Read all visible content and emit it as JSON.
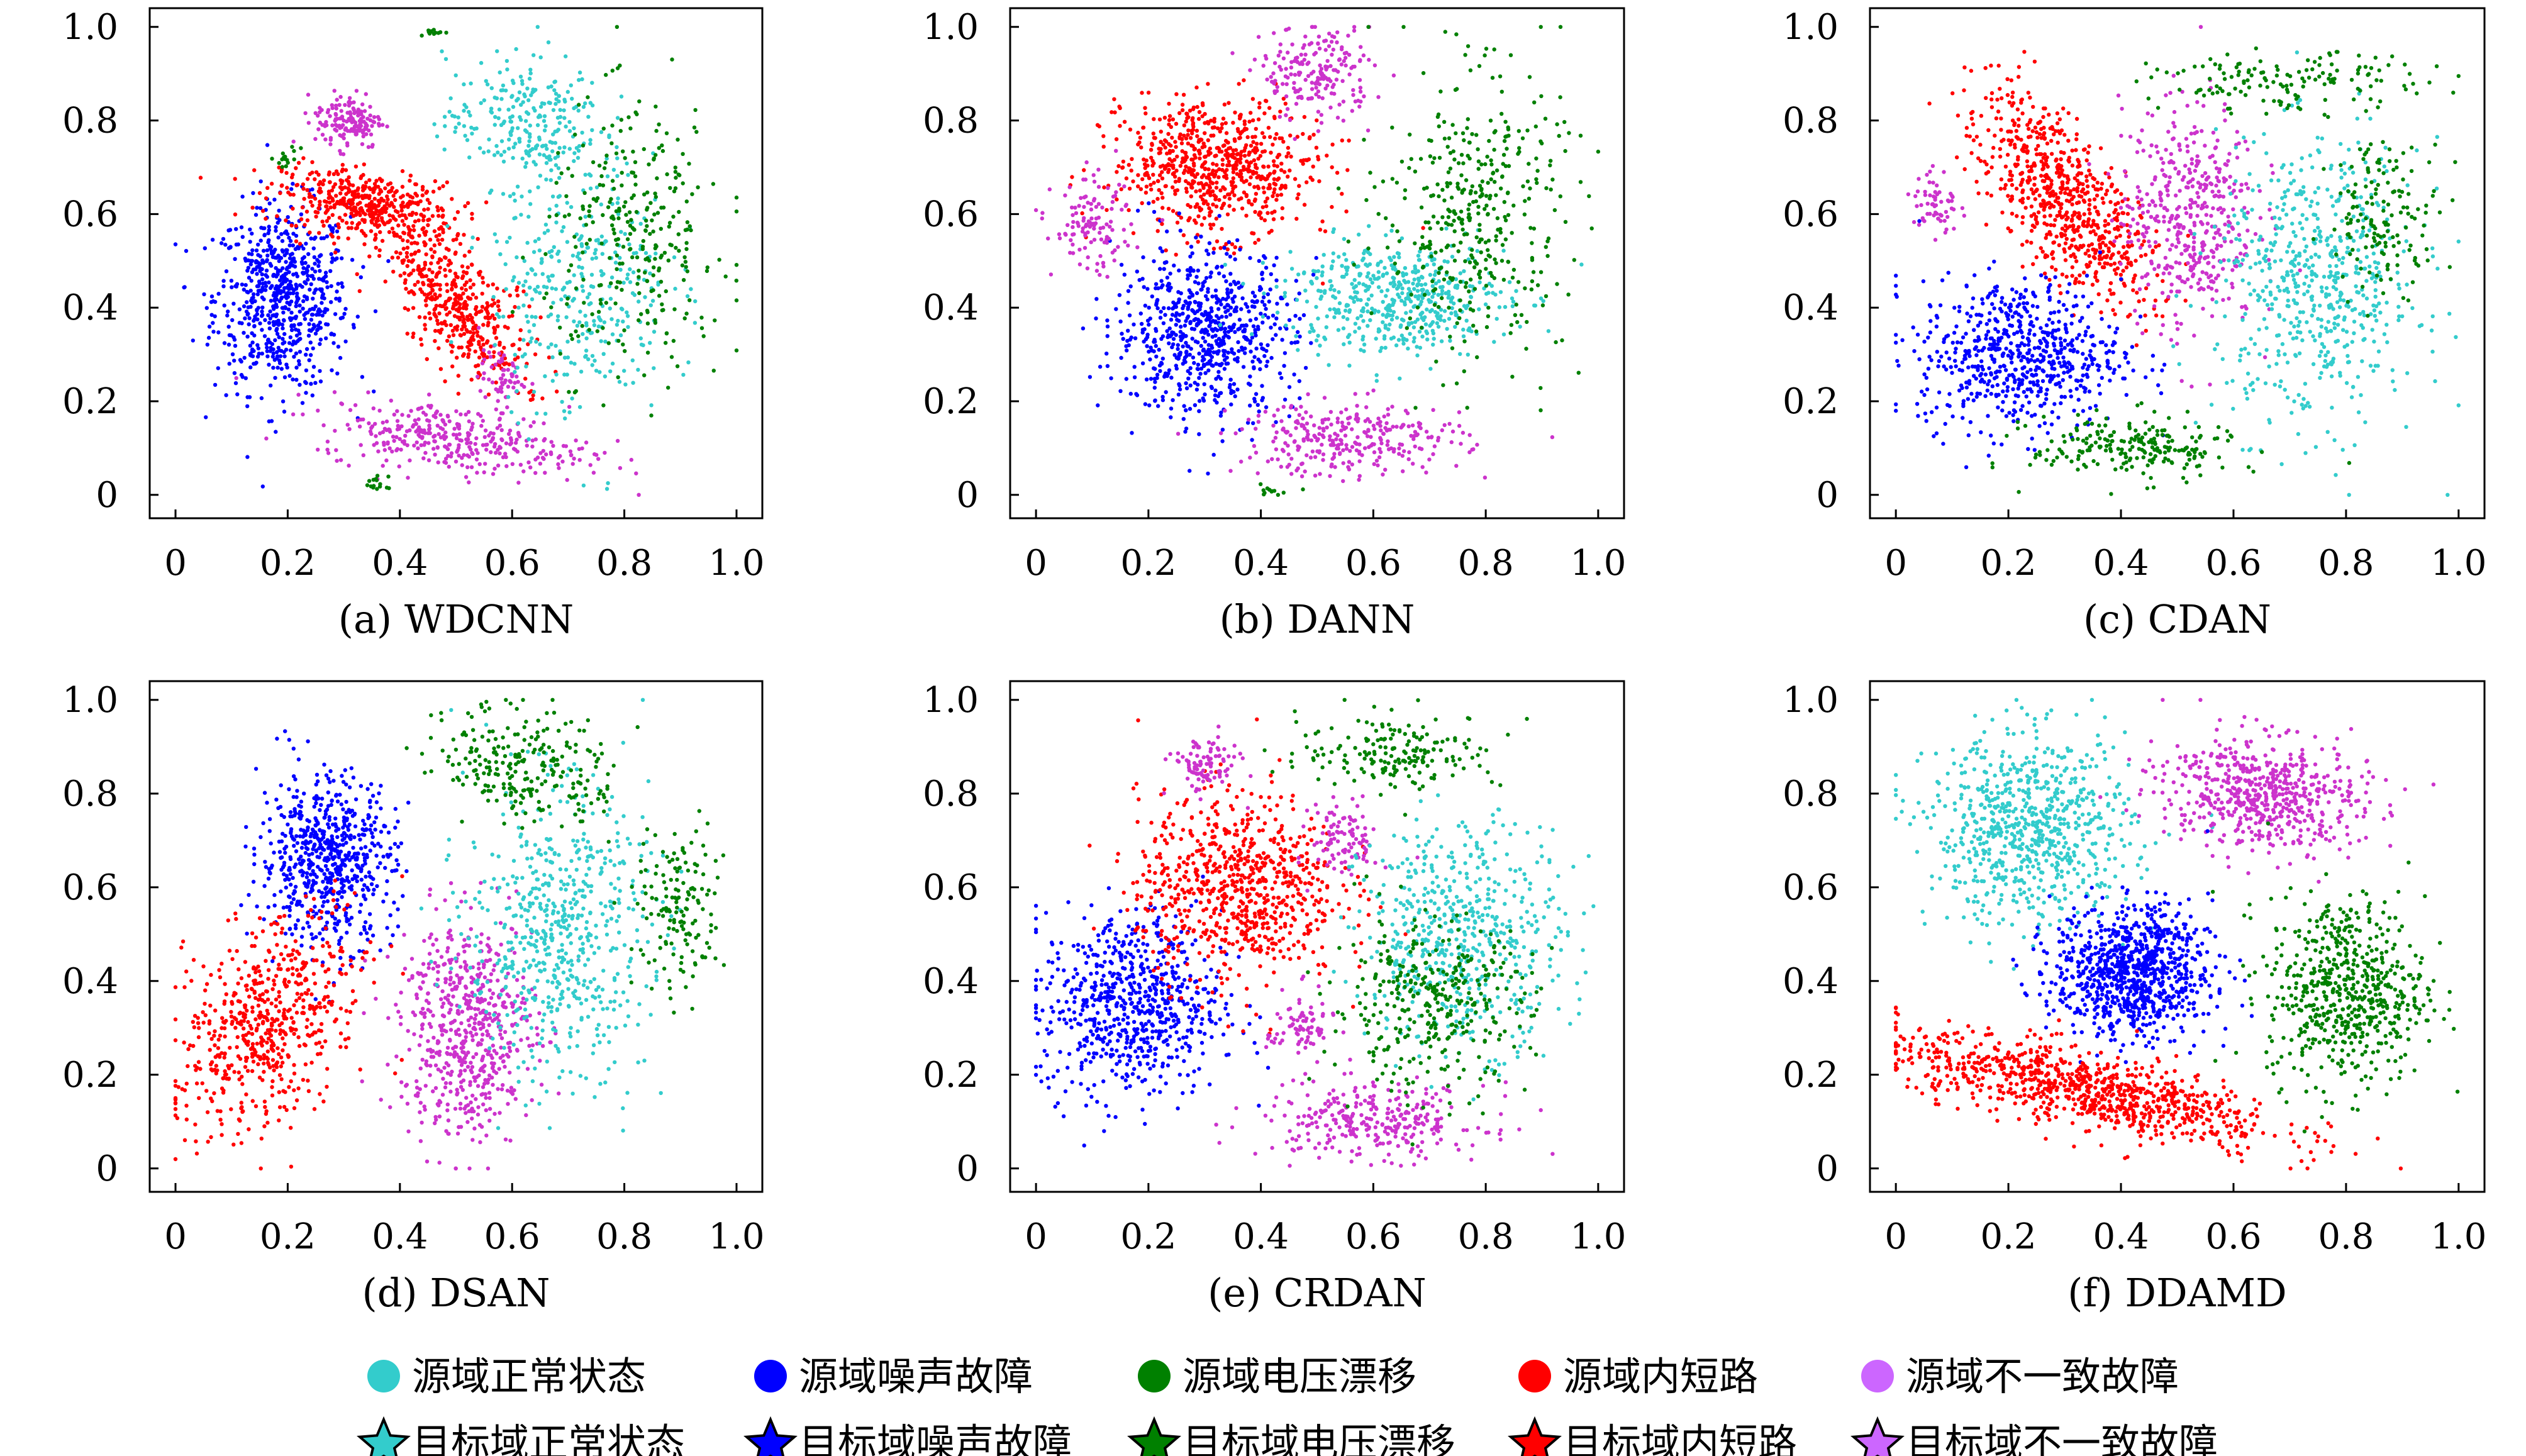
{
  "chart_data": [
    {
      "type": "scatter",
      "caption": "(a) WDCNN",
      "xlim": [
        -0.046,
        1.046
      ],
      "ylim": [
        -0.05,
        1.04
      ],
      "xticks": [
        "0",
        "0.2",
        "0.4",
        "0.6",
        "0.8",
        "1.0"
      ],
      "yticks": [
        "0",
        "0.2",
        "0.4",
        "0.6",
        "0.8",
        "1.0"
      ],
      "clusters": [
        {
          "cls": 1,
          "cx": 0.19,
          "cy": 0.42,
          "sx": 0.06,
          "sy": 0.1,
          "a": 0,
          "n": 700
        },
        {
          "cls": 3,
          "cx": 0.34,
          "cy": 0.62,
          "sx": 0.08,
          "sy": 0.035,
          "a": -10,
          "n": 450
        },
        {
          "cls": 3,
          "cx": 0.5,
          "cy": 0.4,
          "sx": 0.04,
          "sy": 0.1,
          "a": 35,
          "n": 450
        },
        {
          "cls": 4,
          "cx": 0.31,
          "cy": 0.8,
          "sx": 0.03,
          "sy": 0.03,
          "a": 0,
          "n": 150
        },
        {
          "cls": 4,
          "cx": 0.5,
          "cy": 0.12,
          "sx": 0.12,
          "sy": 0.035,
          "a": -8,
          "n": 350
        },
        {
          "cls": 4,
          "cx": 0.58,
          "cy": 0.25,
          "sx": 0.02,
          "sy": 0.03,
          "a": 0,
          "n": 60
        },
        {
          "cls": 0,
          "cx": 0.62,
          "cy": 0.8,
          "sx": 0.07,
          "sy": 0.07,
          "a": 0,
          "n": 250
        },
        {
          "cls": 0,
          "cx": 0.72,
          "cy": 0.45,
          "sx": 0.08,
          "sy": 0.14,
          "a": 0,
          "n": 350
        },
        {
          "cls": 2,
          "cx": 0.82,
          "cy": 0.55,
          "sx": 0.08,
          "sy": 0.14,
          "a": 0,
          "n": 300
        },
        {
          "cls": 2,
          "cx": 0.2,
          "cy": 0.72,
          "sx": 0.01,
          "sy": 0.01,
          "a": 0,
          "n": 15
        },
        {
          "cls": 2,
          "cx": 0.36,
          "cy": 0.02,
          "sx": 0.01,
          "sy": 0.01,
          "a": 0,
          "n": 15
        },
        {
          "cls": 2,
          "cx": 0.46,
          "cy": 0.99,
          "sx": 0.01,
          "sy": 0.005,
          "a": 0,
          "n": 12
        }
      ]
    },
    {
      "type": "scatter",
      "caption": "(b) DANN",
      "xlim": [
        -0.046,
        1.046
      ],
      "ylim": [
        -0.05,
        1.04
      ],
      "xticks": [
        "0",
        "0.2",
        "0.4",
        "0.6",
        "0.8",
        "1.0"
      ],
      "yticks": [
        "0",
        "0.2",
        "0.4",
        "0.6",
        "0.8",
        "1.0"
      ],
      "clusters": [
        {
          "cls": 3,
          "cx": 0.32,
          "cy": 0.7,
          "sx": 0.09,
          "sy": 0.07,
          "a": -10,
          "n": 700
        },
        {
          "cls": 1,
          "cx": 0.3,
          "cy": 0.35,
          "sx": 0.08,
          "sy": 0.09,
          "a": 0,
          "n": 700
        },
        {
          "cls": 4,
          "cx": 0.5,
          "cy": 0.9,
          "sx": 0.05,
          "sy": 0.05,
          "a": 0,
          "n": 200
        },
        {
          "cls": 4,
          "cx": 0.1,
          "cy": 0.57,
          "sx": 0.035,
          "sy": 0.05,
          "a": 0,
          "n": 120
        },
        {
          "cls": 4,
          "cx": 0.56,
          "cy": 0.12,
          "sx": 0.1,
          "sy": 0.04,
          "a": 0,
          "n": 300
        },
        {
          "cls": 0,
          "cx": 0.64,
          "cy": 0.42,
          "sx": 0.1,
          "sy": 0.06,
          "a": 0,
          "n": 500
        },
        {
          "cls": 2,
          "cx": 0.78,
          "cy": 0.6,
          "sx": 0.08,
          "sy": 0.15,
          "a": 0,
          "n": 400
        },
        {
          "cls": 2,
          "cx": 0.42,
          "cy": 0.01,
          "sx": 0.02,
          "sy": 0.005,
          "a": 0,
          "n": 12
        }
      ]
    },
    {
      "type": "scatter",
      "caption": "(c) CDAN",
      "xlim": [
        -0.046,
        1.046
      ],
      "ylim": [
        -0.05,
        1.04
      ],
      "xticks": [
        "0",
        "0.2",
        "0.4",
        "0.6",
        "0.8",
        "1.0"
      ],
      "yticks": [
        "0",
        "0.2",
        "0.4",
        "0.6",
        "0.8",
        "1.0"
      ],
      "clusters": [
        {
          "cls": 3,
          "cx": 0.3,
          "cy": 0.63,
          "sx": 0.05,
          "sy": 0.13,
          "a": 30,
          "n": 700
        },
        {
          "cls": 1,
          "cx": 0.22,
          "cy": 0.3,
          "sx": 0.09,
          "sy": 0.08,
          "a": 0,
          "n": 650
        },
        {
          "cls": 4,
          "cx": 0.52,
          "cy": 0.6,
          "sx": 0.06,
          "sy": 0.12,
          "a": 0,
          "n": 450
        },
        {
          "cls": 4,
          "cx": 0.07,
          "cy": 0.62,
          "sx": 0.02,
          "sy": 0.04,
          "a": 0,
          "n": 60
        },
        {
          "cls": 0,
          "cx": 0.75,
          "cy": 0.45,
          "sx": 0.09,
          "sy": 0.15,
          "a": 0,
          "n": 600
        },
        {
          "cls": 2,
          "cx": 0.42,
          "cy": 0.1,
          "sx": 0.09,
          "sy": 0.035,
          "a": 0,
          "n": 220
        },
        {
          "cls": 2,
          "cx": 0.7,
          "cy": 0.88,
          "sx": 0.12,
          "sy": 0.03,
          "a": 0,
          "n": 150
        },
        {
          "cls": 2,
          "cx": 0.87,
          "cy": 0.6,
          "sx": 0.05,
          "sy": 0.08,
          "a": 0,
          "n": 150
        }
      ]
    },
    {
      "type": "scatter",
      "caption": "(d) DSAN",
      "xlim": [
        -0.046,
        1.046
      ],
      "ylim": [
        -0.05,
        1.04
      ],
      "xticks": [
        "0",
        "0.2",
        "0.4",
        "0.6",
        "0.8",
        "1.0"
      ],
      "yticks": [
        "0",
        "0.2",
        "0.4",
        "0.6",
        "0.8",
        "1.0"
      ],
      "clusters": [
        {
          "cls": 1,
          "cx": 0.27,
          "cy": 0.66,
          "sx": 0.06,
          "sy": 0.09,
          "a": 0,
          "n": 650
        },
        {
          "cls": 3,
          "cx": 0.16,
          "cy": 0.3,
          "sx": 0.07,
          "sy": 0.12,
          "a": -25,
          "n": 600
        },
        {
          "cls": 4,
          "cx": 0.52,
          "cy": 0.3,
          "sx": 0.06,
          "sy": 0.12,
          "a": 0,
          "n": 600
        },
        {
          "cls": 0,
          "cx": 0.68,
          "cy": 0.5,
          "sx": 0.08,
          "sy": 0.15,
          "a": 0,
          "n": 600
        },
        {
          "cls": 2,
          "cx": 0.63,
          "cy": 0.86,
          "sx": 0.08,
          "sy": 0.06,
          "a": -20,
          "n": 250
        },
        {
          "cls": 2,
          "cx": 0.9,
          "cy": 0.55,
          "sx": 0.04,
          "sy": 0.09,
          "a": 0,
          "n": 150
        }
      ]
    },
    {
      "type": "scatter",
      "caption": "(e) CRDAN",
      "xlim": [
        -0.046,
        1.046
      ],
      "ylim": [
        -0.05,
        1.04
      ],
      "xticks": [
        "0",
        "0.2",
        "0.4",
        "0.6",
        "0.8",
        "1.0"
      ],
      "yticks": [
        "0",
        "0.2",
        "0.4",
        "0.6",
        "0.8",
        "1.0"
      ],
      "clusters": [
        {
          "cls": 1,
          "cx": 0.17,
          "cy": 0.35,
          "sx": 0.08,
          "sy": 0.1,
          "a": 0,
          "n": 700
        },
        {
          "cls": 3,
          "cx": 0.36,
          "cy": 0.6,
          "sx": 0.09,
          "sy": 0.1,
          "a": 0,
          "n": 750
        },
        {
          "cls": 4,
          "cx": 0.6,
          "cy": 0.1,
          "sx": 0.1,
          "sy": 0.04,
          "a": 0,
          "n": 300
        },
        {
          "cls": 4,
          "cx": 0.3,
          "cy": 0.86,
          "sx": 0.03,
          "sy": 0.03,
          "a": 0,
          "n": 100
        },
        {
          "cls": 4,
          "cx": 0.55,
          "cy": 0.7,
          "sx": 0.03,
          "sy": 0.04,
          "a": 0,
          "n": 100
        },
        {
          "cls": 4,
          "cx": 0.47,
          "cy": 0.3,
          "sx": 0.03,
          "sy": 0.04,
          "a": 0,
          "n": 80
        },
        {
          "cls": 0,
          "cx": 0.76,
          "cy": 0.5,
          "sx": 0.09,
          "sy": 0.12,
          "a": 0,
          "n": 550
        },
        {
          "cls": 2,
          "cx": 0.7,
          "cy": 0.35,
          "sx": 0.09,
          "sy": 0.09,
          "a": 0,
          "n": 350
        },
        {
          "cls": 2,
          "cx": 0.65,
          "cy": 0.89,
          "sx": 0.09,
          "sy": 0.04,
          "a": 0,
          "n": 180
        }
      ]
    },
    {
      "type": "scatter",
      "caption": "(f) DDAMD",
      "xlim": [
        -0.046,
        1.046
      ],
      "ylim": [
        -0.05,
        1.04
      ],
      "xticks": [
        "0",
        "0.2",
        "0.4",
        "0.6",
        "0.8",
        "1.0"
      ],
      "yticks": [
        "0",
        "0.2",
        "0.4",
        "0.6",
        "0.8",
        "1.0"
      ],
      "clusters": [
        {
          "cls": 0,
          "cx": 0.24,
          "cy": 0.72,
          "sx": 0.09,
          "sy": 0.1,
          "a": 0,
          "n": 750
        },
        {
          "cls": 4,
          "cx": 0.65,
          "cy": 0.8,
          "sx": 0.09,
          "sy": 0.06,
          "a": -10,
          "n": 600
        },
        {
          "cls": 1,
          "cx": 0.42,
          "cy": 0.42,
          "sx": 0.07,
          "sy": 0.07,
          "a": 0,
          "n": 900
        },
        {
          "cls": 2,
          "cx": 0.8,
          "cy": 0.38,
          "sx": 0.07,
          "sy": 0.1,
          "a": 0,
          "n": 600
        },
        {
          "cls": 3,
          "cx": 0.33,
          "cy": 0.17,
          "sx": 0.18,
          "sy": 0.04,
          "a": -14,
          "n": 900
        }
      ]
    }
  ],
  "legend": {
    "source": [
      "源域正常状态",
      "源域噪声故障",
      "源域电压漂移",
      "源域内短路",
      "源域不一致故障"
    ],
    "target": [
      "目标域正常状态",
      "目标域噪声故障",
      "目标域电压漂移",
      "目标域内短路",
      "目标域不一致故障"
    ]
  },
  "colors": [
    "#33cccc",
    "#0000ff",
    "#008000",
    "#ff0000",
    "#cc33cc"
  ],
  "legend_colors": [
    "#33cccc",
    "#0000ff",
    "#008000",
    "#ff0000",
    "#cc66ff"
  ]
}
